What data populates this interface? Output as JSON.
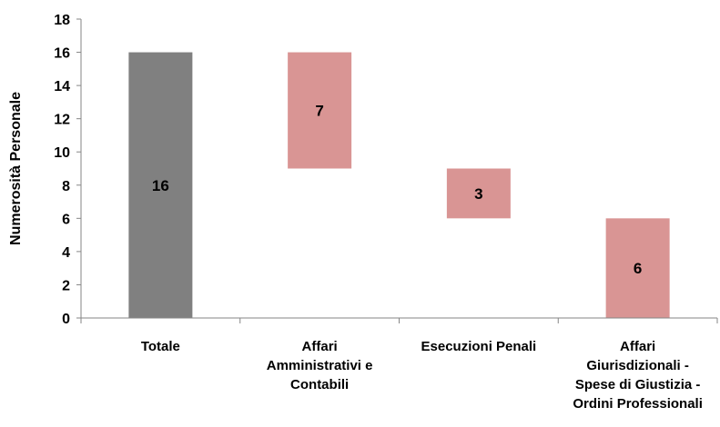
{
  "chart_data": {
    "type": "bar",
    "subtype": "waterfall",
    "categories": [
      "Totale",
      "Affari Amministrativi e Contabili",
      "Esecuzioni Penali",
      "Affari Giurisdizionali - Spese di Giustizia - Ordini Professionali"
    ],
    "category_lines": [
      [
        "Totale"
      ],
      [
        "Affari",
        "Amministrativi e",
        "Contabili"
      ],
      [
        "Esecuzioni Penali"
      ],
      [
        "Affari",
        "Giurisdizionali -",
        "Spese di Giustizia -",
        "Ordini Professionali"
      ]
    ],
    "values": [
      16,
      7,
      3,
      6
    ],
    "bars": [
      {
        "category": "Totale",
        "bottom": 0,
        "top": 16,
        "label": "16"
      },
      {
        "category": "Affari Amministrativi e Contabili",
        "bottom": 9,
        "top": 16,
        "label": "7"
      },
      {
        "category": "Esecuzioni Penali",
        "bottom": 6,
        "top": 9,
        "label": "3"
      },
      {
        "category": "Affari Giurisdizionali - Spese di Giustizia - Ordini Professionali",
        "bottom": 0,
        "top": 6,
        "label": "6"
      }
    ],
    "title": "",
    "xlabel": "",
    "ylabel": "Numerosità Personale",
    "ylim": [
      0,
      18
    ],
    "yticks": [
      0,
      2,
      4,
      6,
      8,
      10,
      12,
      14,
      16,
      18
    ],
    "grid": false,
    "legend": "none",
    "colors": {
      "total": "#808080",
      "component": "#d99594",
      "axis": "#868686"
    }
  }
}
